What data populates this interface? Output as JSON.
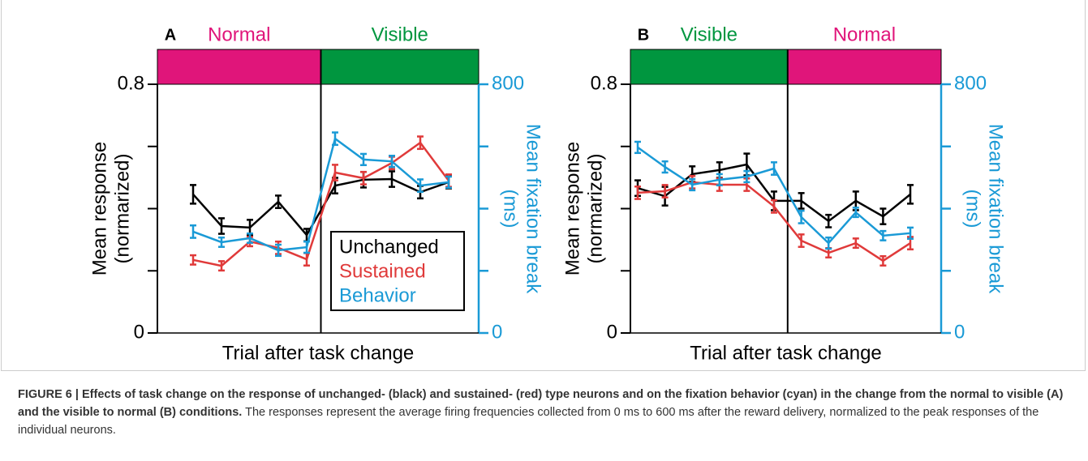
{
  "chart_data": [
    {
      "type": "line",
      "panel": "A",
      "bands": [
        {
          "label": "Normal",
          "color": "#e0157a",
          "trials": 5
        },
        {
          "label": "Visible",
          "color": "#00963f",
          "trials": 5
        }
      ],
      "categories": [
        null,
        null,
        null,
        null,
        null,
        null,
        null,
        null,
        null,
        null
      ],
      "series": [
        {
          "name": "Unchanged",
          "color": "#000000",
          "values": [
            0.446,
            0.344,
            0.339,
            0.422,
            0.315,
            0.474,
            0.493,
            0.495,
            0.453,
            0.485
          ],
          "errors": [
            0.03,
            0.025,
            0.025,
            0.02,
            0.02,
            0.025,
            0.025,
            0.025,
            0.02,
            0.02
          ]
        },
        {
          "name": "Sustained",
          "color": "#e03a3a",
          "values": [
            0.235,
            0.216,
            0.294,
            0.274,
            0.237,
            0.516,
            0.498,
            0.547,
            0.612,
            0.49
          ],
          "errors": [
            0.015,
            0.015,
            0.015,
            0.02,
            0.02,
            0.025,
            0.02,
            0.02,
            0.02,
            0.02
          ]
        },
        {
          "name": "Behavior",
          "color": "#1a9ad6",
          "axis": "y2",
          "values": [
            326,
            292,
            305,
            266,
            276,
            625,
            558,
            552,
            474,
            485
          ],
          "errors": [
            20,
            15,
            15,
            18,
            18,
            20,
            18,
            18,
            20,
            18
          ]
        }
      ],
      "ylim": [
        0,
        0.8
      ],
      "yticks": [
        0,
        0.8
      ],
      "yminor": [
        0.2,
        0.4,
        0.6
      ],
      "y2lim": [
        0,
        800
      ],
      "y2ticks": [
        0,
        800
      ],
      "y2minor": [
        200,
        400,
        600
      ],
      "ylabel": [
        "Mean response",
        "(normarized)"
      ],
      "y2label": [
        "Mean fixation break",
        "(ms)"
      ],
      "xlabel": "Trial after task change",
      "legend": "lower right"
    },
    {
      "type": "line",
      "panel": "B",
      "bands": [
        {
          "label": "Visible",
          "color": "#00963f",
          "trials": 6
        },
        {
          "label": "Normal",
          "color": "#e0157a",
          "trials": 5
        }
      ],
      "categories": [
        null,
        null,
        null,
        null,
        null,
        null,
        null,
        null,
        null,
        null,
        null
      ],
      "series": [
        {
          "name": "Unchanged",
          "color": "#000000",
          "values": [
            0.466,
            0.44,
            0.511,
            0.524,
            0.542,
            0.425,
            0.425,
            0.36,
            0.425,
            0.375,
            0.446
          ],
          "errors": [
            0.025,
            0.03,
            0.025,
            0.025,
            0.035,
            0.03,
            0.025,
            0.02,
            0.03,
            0.025,
            0.03
          ]
        },
        {
          "name": "Sustained",
          "color": "#e03a3a",
          "values": [
            0.451,
            0.456,
            0.485,
            0.477,
            0.477,
            0.407,
            0.297,
            0.258,
            0.289,
            0.232,
            0.289
          ],
          "errors": [
            0.02,
            0.02,
            0.02,
            0.02,
            0.02,
            0.02,
            0.02,
            0.015,
            0.015,
            0.015,
            0.02
          ]
        },
        {
          "name": "Behavior",
          "color": "#1a9ad6",
          "axis": "y2",
          "values": [
            597,
            534,
            477,
            493,
            503,
            529,
            373,
            289,
            388,
            313,
            321
          ],
          "errors": [
            18,
            18,
            18,
            18,
            18,
            20,
            20,
            18,
            15,
            15,
            18
          ]
        }
      ],
      "ylim": [
        0,
        0.8
      ],
      "yticks": [
        0,
        0.8
      ],
      "yminor": [
        0.2,
        0.4,
        0.6
      ],
      "y2lim": [
        0,
        800
      ],
      "y2ticks": [
        0,
        800
      ],
      "y2minor": [
        200,
        400,
        600
      ],
      "ylabel": [
        "Mean response",
        "(normarized)"
      ],
      "y2label": [
        "Mean fixation break",
        "(ms)"
      ],
      "xlabel": "Trial after task change"
    }
  ],
  "caption": {
    "bold": "FIGURE 6 | Effects of task change on the response of unchanged- (black) and sustained- (red) type neurons and on the fixation behavior (cyan) in the change from the normal to visible (A) and the visible to normal (B) conditions.",
    "text": "The responses represent the average firing frequencies collected from 0 ms to 600 ms after the reward delivery, normalized to the peak responses of the individual neurons."
  }
}
